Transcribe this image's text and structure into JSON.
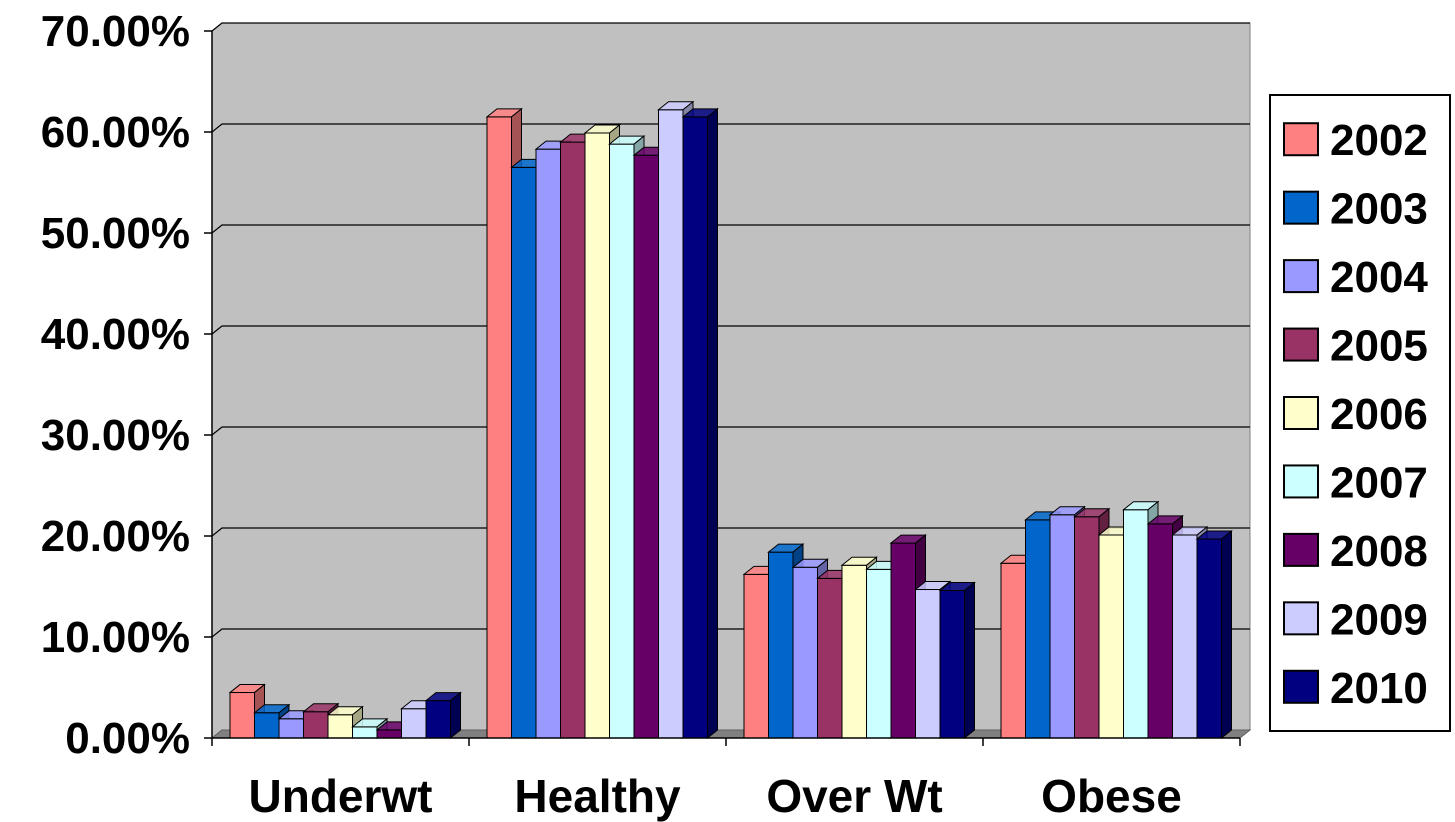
{
  "chart_data": {
    "type": "bar",
    "categories": [
      "Underwt",
      "Healthy",
      "Over Wt",
      "Obese"
    ],
    "series": [
      {
        "name": "2002",
        "color": "#FF8080",
        "values": [
          4.5,
          61.5,
          16.2,
          17.3
        ]
      },
      {
        "name": "2003",
        "color": "#0066CC",
        "values": [
          2.5,
          56.5,
          18.4,
          21.6
        ]
      },
      {
        "name": "2004",
        "color": "#9999FF",
        "values": [
          1.9,
          58.3,
          16.9,
          22.1
        ]
      },
      {
        "name": "2005",
        "color": "#993366",
        "values": [
          2.6,
          59.0,
          15.8,
          21.9
        ]
      },
      {
        "name": "2006",
        "color": "#FFFFCC",
        "values": [
          2.3,
          59.9,
          17.1,
          20.1
        ]
      },
      {
        "name": "2007",
        "color": "#CCFFFF",
        "values": [
          1.1,
          58.8,
          16.7,
          22.6
        ]
      },
      {
        "name": "2008",
        "color": "#660066",
        "values": [
          0.8,
          57.7,
          19.3,
          21.2
        ]
      },
      {
        "name": "2009",
        "color": "#CCCCFF",
        "values": [
          2.9,
          62.2,
          14.7,
          20.1
        ]
      },
      {
        "name": "2010",
        "color": "#000080",
        "values": [
          3.7,
          61.5,
          14.6,
          19.7
        ]
      }
    ],
    "y_ticks": [
      "0.00%",
      "10.00%",
      "20.00%",
      "30.00%",
      "40.00%",
      "50.00%",
      "60.00%",
      "70.00%"
    ],
    "ylim": [
      0,
      70
    ],
    "grid": true,
    "legend_position": "right",
    "plot_background": "#C0C0C0",
    "title": "",
    "xlabel": "",
    "ylabel": ""
  }
}
